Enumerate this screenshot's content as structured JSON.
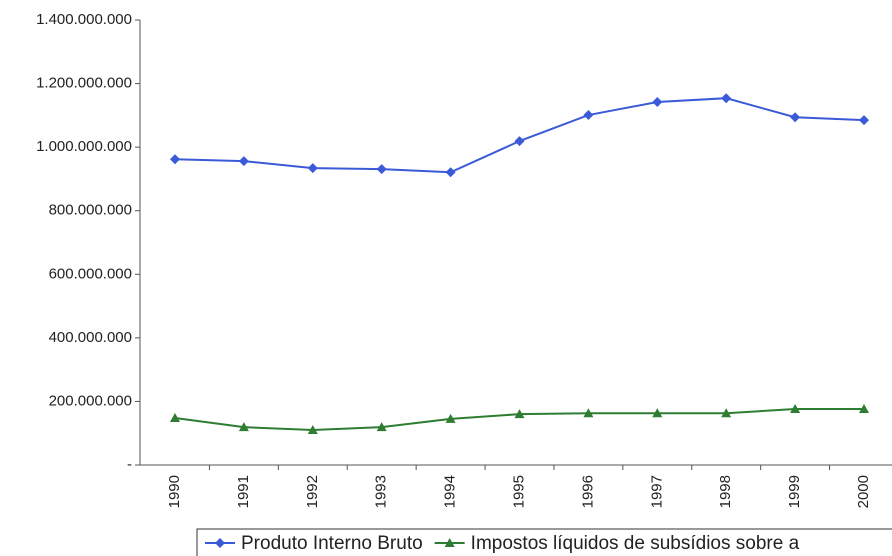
{
  "chart_data": {
    "type": "line",
    "categories": [
      "1990",
      "1991",
      "1992",
      "1993",
      "1994",
      "1995",
      "1996",
      "1997",
      "1998",
      "1999",
      "2000"
    ],
    "series": [
      {
        "name": "Produto Interno Bruto",
        "color": "#3a5ad8",
        "marker": "diamond",
        "values": [
          962000000,
          956000000,
          934000000,
          931000000,
          921000000,
          1019000000,
          1101000000,
          1142000000,
          1154000000,
          1094000000,
          1085000000
        ]
      },
      {
        "name": "Impostos líquidos de subsídios sobre a",
        "color": "#2e7d32",
        "marker": "triangle",
        "values": [
          148000000,
          119000000,
          110000000,
          119000000,
          145000000,
          160000000,
          163000000,
          163000000,
          163000000,
          176000000,
          176000000
        ]
      }
    ],
    "ylim": [
      0,
      1400000000
    ],
    "yticks": [
      {
        "value": 0,
        "label": "-"
      },
      {
        "value": 200000000,
        "label": "200.000.000"
      },
      {
        "value": 400000000,
        "label": "400.000.000"
      },
      {
        "value": 600000000,
        "label": "600.000.000"
      },
      {
        "value": 800000000,
        "label": "800.000.000"
      },
      {
        "value": 1000000000,
        "label": "1.000.000.000"
      },
      {
        "value": 1200000000,
        "label": "1.200.000.000"
      },
      {
        "value": 1400000000,
        "label": "1.400.000.000"
      }
    ],
    "grid": false,
    "legend": "bottom"
  }
}
